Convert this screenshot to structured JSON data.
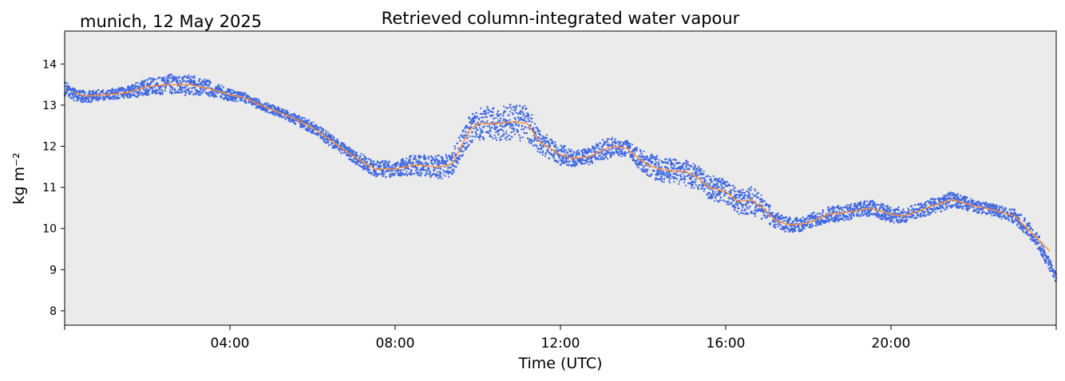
{
  "chart_data": {
    "type": "scatter",
    "title": "Retrieved column-integrated water vapour",
    "subtitle": "munich, 12 May 2025",
    "xlabel": "Time (UTC)",
    "ylabel": "kg m⁻²",
    "x_unit": "hours UTC",
    "xlim": [
      0,
      24
    ],
    "ylim": [
      7.65,
      14.8
    ],
    "x_ticks": [
      4,
      8,
      12,
      16,
      20
    ],
    "x_tick_labels": [
      "04:00",
      "08:00",
      "12:00",
      "16:00",
      "20:00"
    ],
    "y_ticks": [
      8,
      9,
      10,
      11,
      12,
      13,
      14
    ],
    "y_tick_labels": [
      "8",
      "9",
      "10",
      "11",
      "12",
      "13",
      "14"
    ],
    "grid": false,
    "background": "#ebebeb",
    "series": [
      {
        "role": "retrievals",
        "mark": "points",
        "color": "#4169e1",
        "x": [
          0.0,
          0.25,
          0.5,
          1.0,
          1.5,
          2.0,
          2.5,
          3.0,
          3.5,
          4.0,
          4.3,
          4.75,
          5.5,
          6.0,
          6.5,
          7.0,
          7.25,
          7.5,
          8.0,
          8.5,
          9.0,
          9.2,
          9.4,
          9.6,
          9.8,
          10.0,
          10.5,
          10.9,
          11.2,
          11.5,
          12.0,
          12.3,
          12.7,
          13.0,
          13.3,
          13.6,
          13.9,
          14.1,
          14.4,
          14.7,
          15.0,
          15.3,
          15.6,
          16.0,
          16.3,
          16.6,
          16.9,
          17.2,
          17.5,
          17.8,
          18.0,
          18.5,
          19.0,
          19.5,
          20.0,
          20.3,
          20.6,
          21.0,
          21.5,
          22.0,
          22.5,
          23.0,
          23.5,
          24.0
        ],
        "y": [
          13.4,
          13.25,
          13.2,
          13.25,
          13.3,
          13.45,
          13.5,
          13.5,
          13.4,
          13.25,
          13.2,
          13.0,
          12.7,
          12.45,
          12.1,
          11.75,
          11.6,
          11.45,
          11.45,
          11.55,
          11.5,
          11.5,
          11.6,
          12.0,
          12.4,
          12.55,
          12.55,
          12.6,
          12.55,
          12.1,
          11.8,
          11.7,
          11.75,
          11.9,
          12.0,
          11.95,
          11.7,
          11.55,
          11.45,
          11.4,
          11.4,
          11.25,
          11.0,
          10.9,
          10.65,
          10.7,
          10.5,
          10.2,
          10.1,
          10.1,
          10.15,
          10.35,
          10.4,
          10.5,
          10.35,
          10.3,
          10.4,
          10.55,
          10.7,
          10.55,
          10.45,
          10.3,
          9.8,
          8.8
        ],
        "spread": [
          0.2,
          0.15,
          0.15,
          0.12,
          0.15,
          0.2,
          0.25,
          0.25,
          0.2,
          0.15,
          0.12,
          0.12,
          0.12,
          0.15,
          0.15,
          0.15,
          0.2,
          0.2,
          0.2,
          0.25,
          0.3,
          0.3,
          0.3,
          0.35,
          0.35,
          0.4,
          0.4,
          0.45,
          0.45,
          0.3,
          0.25,
          0.2,
          0.2,
          0.25,
          0.25,
          0.2,
          0.25,
          0.3,
          0.3,
          0.3,
          0.35,
          0.3,
          0.3,
          0.3,
          0.3,
          0.35,
          0.3,
          0.2,
          0.2,
          0.18,
          0.18,
          0.2,
          0.2,
          0.2,
          0.2,
          0.2,
          0.18,
          0.2,
          0.2,
          0.15,
          0.15,
          0.18,
          0.2,
          0.15
        ]
      },
      {
        "role": "smoothed",
        "mark": "line",
        "color": "#ff8c3a",
        "x": [
          0.25,
          0.5,
          1.0,
          1.5,
          2.0,
          2.5,
          3.0,
          3.5,
          4.0,
          4.3,
          4.75,
          5.5,
          6.0,
          6.5,
          7.0,
          7.25,
          7.5,
          8.0,
          8.5,
          9.0,
          9.2,
          9.4,
          9.6,
          9.8,
          10.0,
          10.5,
          10.9,
          11.2,
          11.5,
          12.0,
          12.3,
          12.7,
          13.0,
          13.3,
          13.6,
          13.9,
          14.1,
          14.4,
          14.7,
          15.0,
          15.3,
          15.6,
          16.0,
          16.3,
          16.6,
          16.9,
          17.2,
          17.5,
          17.8,
          18.0,
          18.5,
          19.0,
          19.5,
          20.0,
          20.3,
          20.6,
          21.0,
          21.5,
          22.0,
          22.5,
          23.0,
          23.5,
          23.85
        ],
        "y": [
          13.3,
          13.22,
          13.25,
          13.3,
          13.45,
          13.5,
          13.5,
          13.4,
          13.25,
          13.2,
          13.0,
          12.7,
          12.45,
          12.1,
          11.75,
          11.6,
          11.45,
          11.45,
          11.55,
          11.5,
          11.52,
          11.6,
          12.0,
          12.4,
          12.55,
          12.55,
          12.6,
          12.55,
          12.1,
          11.8,
          11.7,
          11.75,
          11.9,
          12.0,
          11.95,
          11.7,
          11.55,
          11.45,
          11.4,
          11.4,
          11.25,
          11.0,
          10.9,
          10.65,
          10.7,
          10.5,
          10.2,
          10.1,
          10.1,
          10.15,
          10.35,
          10.4,
          10.5,
          10.35,
          10.3,
          10.4,
          10.55,
          10.7,
          10.55,
          10.45,
          10.3,
          9.8,
          9.45
        ]
      }
    ]
  }
}
